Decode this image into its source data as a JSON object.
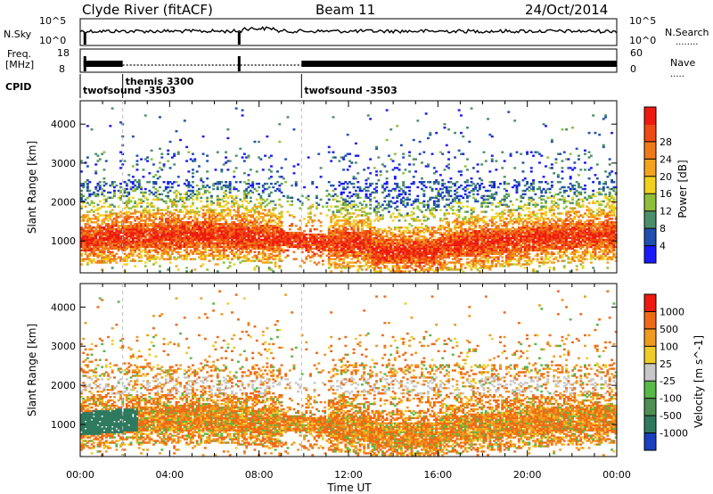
{
  "header": {
    "station": "Clyde River (fitACF)",
    "beam": "Beam 11",
    "date": "24/Oct/2014"
  },
  "summary": {
    "left_labels": {
      "nsky": "N.Sky",
      "freq": "Freq.",
      "freq_unit": "[MHz]",
      "cpid": "CPID"
    },
    "right_labels": {
      "nsearch": "N.Search",
      "nsearch_dots": "........",
      "nave": "Nave",
      "nave_dots": "....."
    },
    "nsky_ticks": [
      "10^5",
      "10^0"
    ],
    "nsearch_ticks": [
      "10^5",
      "10^0"
    ],
    "freq_ticks": [
      "18",
      "8"
    ],
    "nave_ticks": [
      "60",
      "0"
    ],
    "cpid_segments": [
      {
        "label": "twofsound -3503",
        "start_hour": 0.0
      },
      {
        "label": "themis 3300",
        "start_hour": 1.9
      },
      {
        "label": "twofsound -3503",
        "start_hour": 9.9
      }
    ]
  },
  "chart_data": [
    {
      "type": "heatmap",
      "name": "power",
      "x_range_hours": [
        0,
        24
      ],
      "x_ticks": [
        "00:00",
        "04:00",
        "08:00",
        "12:00",
        "16:00",
        "20:00",
        "00:00"
      ],
      "ylabel": "Slant Range [km]",
      "ylim": [
        180,
        4600
      ],
      "y_ticks": [
        1000,
        2000,
        3000,
        4000
      ],
      "colorbar_label": "Power [dB]",
      "colorbar_ticks": [
        4,
        8,
        12,
        16,
        20,
        24,
        28
      ],
      "colorbar_colors": [
        "#1a1aff",
        "#1f4fb0",
        "#4b8f6a",
        "#8fbf3a",
        "#f0d21e",
        "#f5a31e",
        "#f07a1a",
        "#f04a14",
        "#ee1a10"
      ]
    },
    {
      "type": "heatmap",
      "name": "velocity",
      "x_range_hours": [
        0,
        24
      ],
      "x_ticks": [
        "00:00",
        "04:00",
        "08:00",
        "12:00",
        "16:00",
        "20:00",
        "00:00"
      ],
      "xlabel": "Time UT",
      "ylabel": "Slant Range [km]",
      "ylim": [
        180,
        4600
      ],
      "y_ticks": [
        1000,
        2000,
        3000,
        4000
      ],
      "colorbar_label": "Velocity [m s^-1]",
      "colorbar_ticks": [
        "1000",
        "500",
        "100",
        "25",
        "-25",
        "-100",
        "-500",
        "-1000"
      ],
      "colorbar_colors": [
        "#1a3fbf",
        "#2f7a5f",
        "#4f8f52",
        "#58b848",
        "#c8c8c8",
        "#f0cc28",
        "#f09a1e",
        "#f06a16",
        "#ee1a10"
      ]
    }
  ]
}
